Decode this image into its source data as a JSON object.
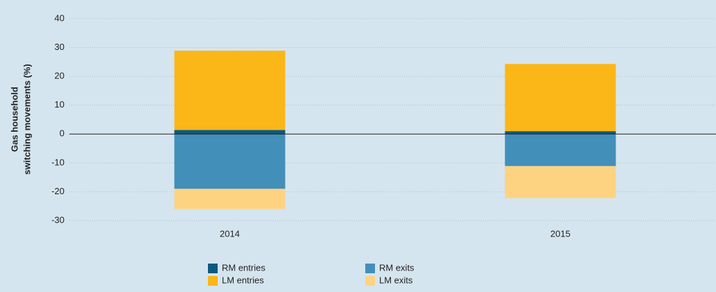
{
  "chart_data": {
    "type": "bar",
    "stacked": true,
    "ylabel": [
      "Gas household",
      "switching movements (%)"
    ],
    "categories": [
      "2014",
      "2015"
    ],
    "series": [
      {
        "name": "RM entries",
        "color": "#0b5a82",
        "values": [
          1.4,
          1.0
        ]
      },
      {
        "name": "RM exits",
        "color": "#428fba",
        "values": [
          -19,
          -11.1
        ]
      },
      {
        "name": "LM entries",
        "color": "#fbb617",
        "values": [
          27.5,
          23.3
        ]
      },
      {
        "name": "LM exits",
        "color": "#fdd382",
        "values": [
          -7,
          -11.1
        ]
      }
    ],
    "ylim": [
      -30,
      40
    ],
    "yticks": [
      -30,
      -20,
      -10,
      0,
      10,
      20,
      30,
      40
    ],
    "grid": true
  }
}
